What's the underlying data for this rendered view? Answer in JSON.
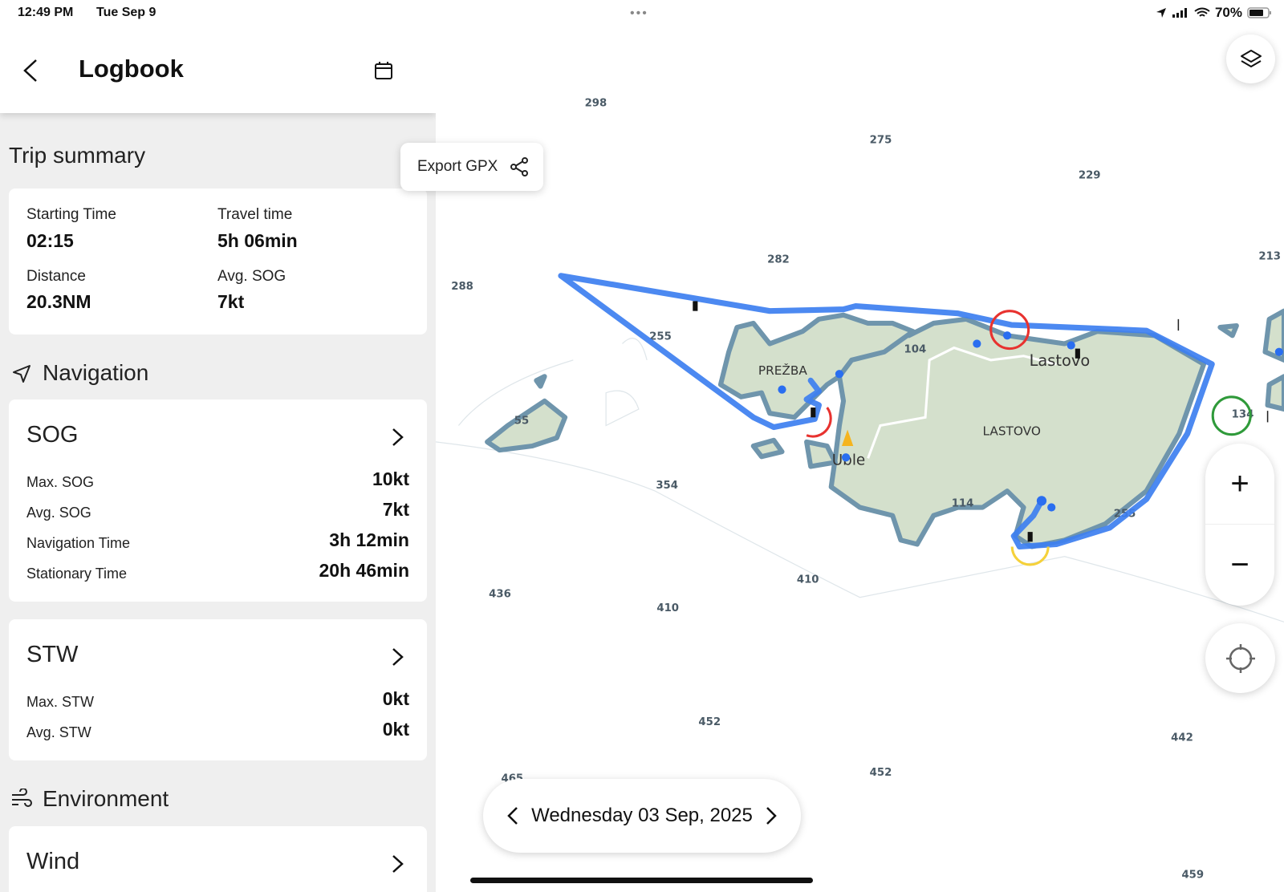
{
  "status_bar": {
    "time": "12:49 PM",
    "date": "Tue Sep 9",
    "battery": "70%",
    "icons": [
      "location-arrow-icon",
      "signal-icon",
      "wifi-icon",
      "battery-icon"
    ]
  },
  "header": {
    "title": "Logbook",
    "back_icon": "chevron-left-icon",
    "calendar_icon": "calendar-icon"
  },
  "trip_summary": {
    "heading": "Trip summary",
    "items": [
      {
        "label": "Starting Time",
        "value": "02:15"
      },
      {
        "label": "Travel time",
        "value": "5h 06min"
      },
      {
        "label": "Distance",
        "value": "20.3NM"
      },
      {
        "label": "Avg. SOG",
        "value": "7kt"
      }
    ]
  },
  "export": {
    "label": "Export GPX",
    "icon": "share-icon"
  },
  "navigation": {
    "heading": "Navigation",
    "icon": "navigation-arrow-icon",
    "sog": {
      "title": "SOG",
      "rows": [
        {
          "label": "Max. SOG",
          "value": "10kt"
        },
        {
          "label": "Avg. SOG",
          "value": "7kt"
        },
        {
          "label": "Navigation Time",
          "value": "3h 12min"
        },
        {
          "label": "Stationary Time",
          "value": "20h 46min"
        }
      ]
    },
    "stw": {
      "title": "STW",
      "rows": [
        {
          "label": "Max. STW",
          "value": "0kt"
        },
        {
          "label": "Avg. STW",
          "value": "0kt"
        }
      ]
    }
  },
  "environment": {
    "heading": "Environment",
    "icon": "wind-icon",
    "wind": {
      "title": "Wind"
    }
  },
  "date_nav": {
    "label": "Wednesday 03 Sep, 2025"
  },
  "map": {
    "depths": [
      "298",
      "275",
      "229",
      "282",
      "213",
      "288",
      "255",
      "104",
      "55",
      "134",
      "354",
      "114",
      "255",
      "436",
      "410",
      "410",
      "452",
      "452",
      "442",
      "465",
      "459"
    ],
    "places": [
      "PREŽBA",
      "Lastovo",
      "LASTOVO",
      "Uble"
    ],
    "track_color": "#3d7ff0",
    "land_color": "#d4e0cc",
    "shallow_color": "#9dbfd3"
  },
  "controls": {
    "layers_icon": "layers-icon",
    "zoom_in": "+",
    "zoom_out": "−",
    "locate_icon": "crosshair-icon"
  }
}
